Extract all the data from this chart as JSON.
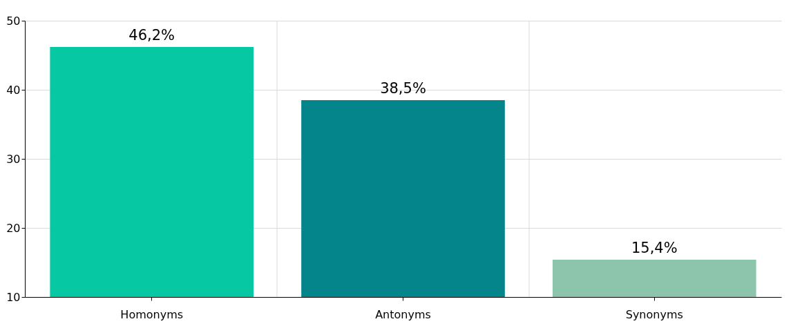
{
  "chart_data": {
    "type": "bar",
    "categories": [
      "Homonyms",
      "Antonyms",
      "Synonyms"
    ],
    "values": [
      46.2,
      38.5,
      15.4
    ],
    "colors": [
      "#06c8a2",
      "#04848b",
      "#8cc5ab"
    ],
    "value_labels": [
      "46,2%",
      "38,5%",
      "15,4%"
    ],
    "ylim": [
      10,
      50
    ],
    "yticks": [
      10,
      20,
      30,
      40,
      50
    ],
    "grid": true
  }
}
